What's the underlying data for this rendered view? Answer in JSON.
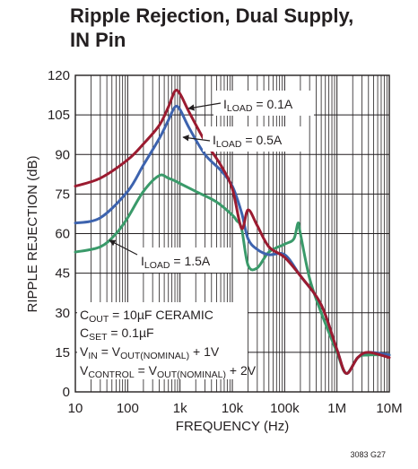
{
  "figure_code": "3083 G27",
  "chart_data": {
    "type": "line",
    "title": "Ripple Rejection, Dual Supply,\nIN Pin",
    "xlabel": "FREQUENCY (Hz)",
    "ylabel": "RIPPLE REJECTION (dB)",
    "x_scale": "log",
    "xlim": [
      10,
      10000000
    ],
    "ylim": [
      0,
      120
    ],
    "x_ticks": [
      {
        "value": 10,
        "label": "10"
      },
      {
        "value": 100,
        "label": "100"
      },
      {
        "value": 1000,
        "label": "1k"
      },
      {
        "value": 10000,
        "label": "10k"
      },
      {
        "value": 100000,
        "label": "100k"
      },
      {
        "value": 1000000,
        "label": "1M"
      },
      {
        "value": 10000000,
        "label": "10M"
      }
    ],
    "y_ticks": [
      0,
      15,
      30,
      45,
      60,
      75,
      90,
      105,
      120
    ],
    "grid": true,
    "series": [
      {
        "name_main": "I",
        "name_sub": "LOAD",
        "name_rest": " = 0.1A",
        "color": "#9b1b30",
        "points": [
          [
            10,
            78
          ],
          [
            30,
            81
          ],
          [
            100,
            88
          ],
          [
            200,
            94
          ],
          [
            400,
            101
          ],
          [
            600,
            108
          ],
          [
            800,
            114
          ],
          [
            1000,
            113
          ],
          [
            1500,
            106
          ],
          [
            3000,
            95
          ],
          [
            6000,
            86
          ],
          [
            10000,
            77
          ],
          [
            15000,
            62
          ],
          [
            20000,
            69
          ],
          [
            30000,
            63
          ],
          [
            50000,
            55
          ],
          [
            100000,
            51
          ],
          [
            200000,
            44
          ],
          [
            500000,
            33
          ],
          [
            1000000,
            16
          ],
          [
            1500000,
            7
          ],
          [
            2500000,
            13
          ],
          [
            4000000,
            15
          ],
          [
            10000000,
            13
          ]
        ]
      },
      {
        "name_main": "I",
        "name_sub": "LOAD",
        "name_rest": " = 0.5A",
        "color": "#3d63ae",
        "points": [
          [
            10,
            64
          ],
          [
            30,
            66
          ],
          [
            100,
            76
          ],
          [
            200,
            86
          ],
          [
            400,
            96
          ],
          [
            600,
            103
          ],
          [
            800,
            108
          ],
          [
            1000,
            107
          ],
          [
            1500,
            100
          ],
          [
            3000,
            90
          ],
          [
            6000,
            84
          ],
          [
            10000,
            78
          ],
          [
            15000,
            68
          ],
          [
            20000,
            58
          ],
          [
            30000,
            54
          ],
          [
            50000,
            52
          ],
          [
            100000,
            52
          ],
          [
            200000,
            44
          ],
          [
            500000,
            33
          ],
          [
            1000000,
            16
          ],
          [
            1500000,
            7
          ],
          [
            2500000,
            13
          ],
          [
            4000000,
            15
          ],
          [
            10000000,
            14
          ]
        ]
      },
      {
        "name_main": "I",
        "name_sub": "LOAD",
        "name_rest": " = 1.5A",
        "color": "#3a9a6a",
        "points": [
          [
            10,
            53
          ],
          [
            30,
            55
          ],
          [
            60,
            60
          ],
          [
            100,
            66
          ],
          [
            200,
            76
          ],
          [
            400,
            82
          ],
          [
            600,
            81
          ],
          [
            800,
            80
          ],
          [
            1000,
            79
          ],
          [
            2000,
            76
          ],
          [
            5000,
            72
          ],
          [
            10000,
            67
          ],
          [
            12000,
            65
          ],
          [
            15000,
            62
          ],
          [
            20000,
            48
          ],
          [
            30000,
            47
          ],
          [
            50000,
            53
          ],
          [
            100000,
            56
          ],
          [
            150000,
            58
          ],
          [
            180000,
            64
          ],
          [
            200000,
            60
          ],
          [
            300000,
            43
          ],
          [
            500000,
            30
          ],
          [
            1000000,
            15
          ],
          [
            1500000,
            7
          ],
          [
            2500000,
            13
          ],
          [
            4000000,
            14
          ],
          [
            10000000,
            14
          ]
        ]
      }
    ],
    "annotations": [
      {
        "main": "C",
        "sub": "OUT",
        "rest": " = 10µF CERAMIC"
      },
      {
        "main": "C",
        "sub": "SET",
        "rest": " = 0.1µF"
      },
      {
        "main": "V",
        "sub": "IN",
        "rest": " = V",
        "sub2": "OUT(NOMINAL)",
        "rest2": " + 1V"
      },
      {
        "main": "V",
        "sub": "CONTROL",
        "rest": " = V",
        "sub2": "OUT(NOMINAL)",
        "rest2": " + 2V"
      }
    ]
  }
}
